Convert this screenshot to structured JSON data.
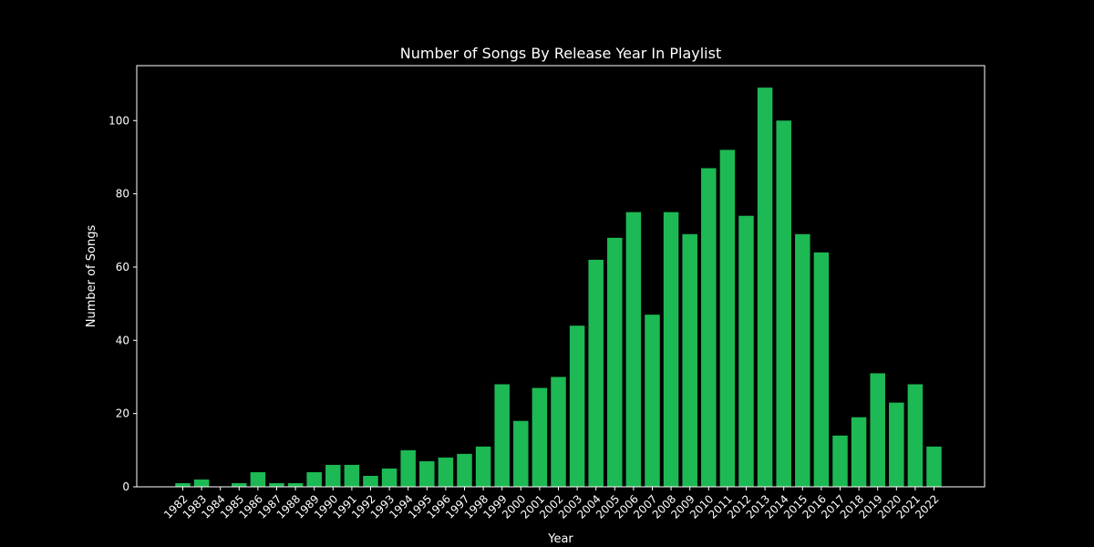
{
  "chart_data": {
    "type": "bar",
    "title": "Number of Songs By Release Year In Playlist",
    "xlabel": "Year",
    "ylabel": "Number of Songs",
    "ylim": [
      0,
      115
    ],
    "yticks": [
      0,
      20,
      40,
      60,
      80,
      100
    ],
    "grid": false,
    "legend": "none",
    "bar_color": "#1DB954",
    "background_color": "#000000",
    "text_color": "#ffffff",
    "categories": [
      "1982",
      "1983",
      "1984",
      "1985",
      "1986",
      "1987",
      "1988",
      "1989",
      "1990",
      "1991",
      "1992",
      "1993",
      "1994",
      "1995",
      "1996",
      "1997",
      "1998",
      "1999",
      "2000",
      "2001",
      "2002",
      "2003",
      "2004",
      "2005",
      "2006",
      "2007",
      "2008",
      "2009",
      "2010",
      "2011",
      "2012",
      "2013",
      "2014",
      "2015",
      "2016",
      "2017",
      "2018",
      "2019",
      "2020",
      "2021",
      "2022"
    ],
    "values": [
      1,
      2,
      0,
      1,
      4,
      1,
      1,
      4,
      6,
      6,
      3,
      5,
      10,
      7,
      8,
      9,
      11,
      28,
      18,
      27,
      30,
      44,
      62,
      68,
      75,
      47,
      75,
      69,
      87,
      92,
      74,
      109,
      100,
      69,
      64,
      14,
      19,
      31,
      23,
      28,
      11
    ]
  }
}
